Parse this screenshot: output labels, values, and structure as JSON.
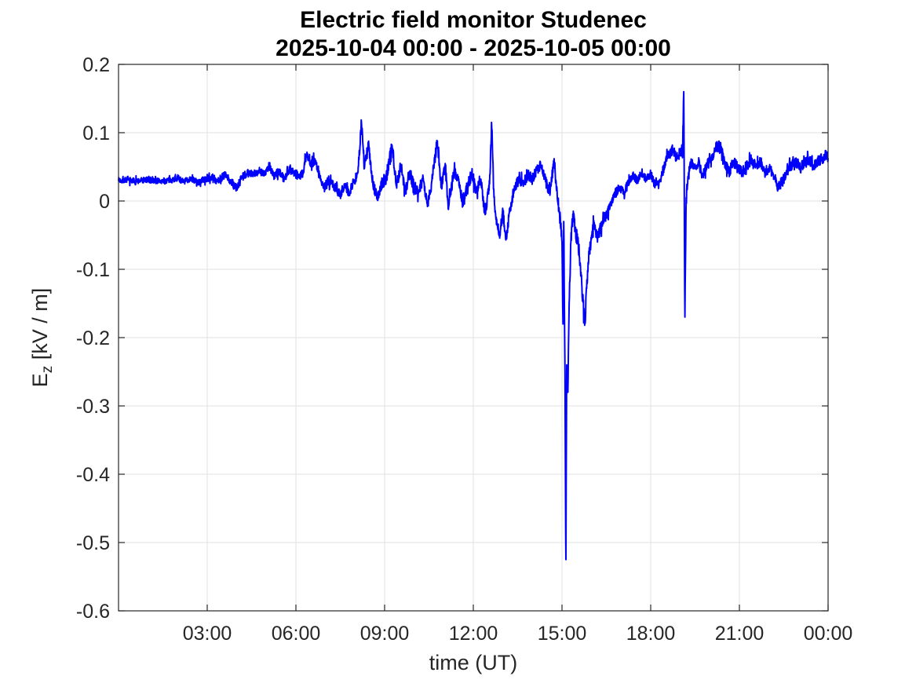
{
  "chart_data": {
    "type": "line",
    "title": "Electric field monitor Studenec",
    "subtitle": "2025-10-04 00:00 - 2025-10-05 00:00",
    "xlabel": "time (UT)",
    "ylabel": "E_z [kV / m]",
    "ylabel_parts": {
      "main": "E",
      "sub": "z",
      "rest": " [kV / m]"
    },
    "x_unit": "hours_UT",
    "xlim": [
      0,
      24
    ],
    "ylim": [
      -0.6,
      0.2
    ],
    "grid": true,
    "legend": null,
    "line_color": "#0000FF",
    "axis_color": "#262626",
    "grid_color": "#E2E2E2",
    "background": "#FFFFFF",
    "x_ticks": [
      {
        "h": 3,
        "label": "03:00"
      },
      {
        "h": 6,
        "label": "06:00"
      },
      {
        "h": 9,
        "label": "09:00"
      },
      {
        "h": 12,
        "label": "12:00"
      },
      {
        "h": 15,
        "label": "15:00"
      },
      {
        "h": 18,
        "label": "18:00"
      },
      {
        "h": 21,
        "label": "21:00"
      },
      {
        "h": 24,
        "label": "00:00"
      }
    ],
    "y_ticks": [
      {
        "v": 0.2,
        "label": "0.2"
      },
      {
        "v": 0.1,
        "label": "0.1"
      },
      {
        "v": 0,
        "label": "0"
      },
      {
        "v": -0.1,
        "label": "-0.1"
      },
      {
        "v": -0.2,
        "label": "-0.2"
      },
      {
        "v": -0.3,
        "label": "-0.3"
      },
      {
        "v": -0.4,
        "label": "-0.4"
      },
      {
        "v": -0.5,
        "label": "-0.5"
      },
      {
        "v": -0.6,
        "label": "-0.6"
      }
    ],
    "keypoints": [
      [
        0,
        0.03
      ],
      [
        0.3,
        0.031
      ],
      [
        0.6,
        0.029
      ],
      [
        0.9,
        0.031
      ],
      [
        1.2,
        0.03
      ],
      [
        1.5,
        0.029
      ],
      [
        1.8,
        0.031
      ],
      [
        2,
        0.034
      ],
      [
        2.2,
        0.028
      ],
      [
        2.45,
        0.033
      ],
      [
        2.7,
        0.027
      ],
      [
        2.9,
        0.031
      ],
      [
        3.1,
        0.035
      ],
      [
        3.35,
        0.03
      ],
      [
        3.6,
        0.038
      ],
      [
        3.8,
        0.028
      ],
      [
        4,
        0.019
      ],
      [
        4.15,
        0.032
      ],
      [
        4.35,
        0.042
      ],
      [
        4.55,
        0.038
      ],
      [
        4.75,
        0.045
      ],
      [
        4.95,
        0.04
      ],
      [
        5.1,
        0.053
      ],
      [
        5.25,
        0.036
      ],
      [
        5.45,
        0.044
      ],
      [
        5.6,
        0.032
      ],
      [
        5.8,
        0.048
      ],
      [
        5.95,
        0.042
      ],
      [
        6.1,
        0.035
      ],
      [
        6.25,
        0.042
      ],
      [
        6.35,
        0.068
      ],
      [
        6.5,
        0.054
      ],
      [
        6.65,
        0.06
      ],
      [
        6.8,
        0.04
      ],
      [
        6.95,
        0.018
      ],
      [
        7.1,
        0.03
      ],
      [
        7.3,
        0.022
      ],
      [
        7.5,
        0.008
      ],
      [
        7.65,
        0.025
      ],
      [
        7.8,
        0.012
      ],
      [
        7.95,
        0.028
      ],
      [
        8.1,
        0.042
      ],
      [
        8.22,
        0.115
      ],
      [
        8.32,
        0.048
      ],
      [
        8.45,
        0.082
      ],
      [
        8.6,
        0.028
      ],
      [
        8.75,
        0.002
      ],
      [
        8.9,
        0.025
      ],
      [
        9.05,
        0.032
      ],
      [
        9.25,
        0.082
      ],
      [
        9.4,
        0.024
      ],
      [
        9.55,
        0.052
      ],
      [
        9.7,
        0.015
      ],
      [
        9.85,
        0.042
      ],
      [
        10,
        0.022
      ],
      [
        10.15,
        0.012
      ],
      [
        10.3,
        0.035
      ],
      [
        10.45,
        -0.008
      ],
      [
        10.6,
        0.03
      ],
      [
        10.78,
        0.088
      ],
      [
        10.92,
        0.02
      ],
      [
        11.05,
        0.055
      ],
      [
        11.15,
        -0.012
      ],
      [
        11.35,
        0.045
      ],
      [
        11.5,
        0.03
      ],
      [
        11.65,
        -0.005
      ],
      [
        11.8,
        0.022
      ],
      [
        11.95,
        0.04
      ],
      [
        12.1,
        0.015
      ],
      [
        12.25,
        0.032
      ],
      [
        12.4,
        -0.02
      ],
      [
        12.55,
        0.025
      ],
      [
        12.62,
        0.115
      ],
      [
        12.7,
        0.005
      ],
      [
        12.8,
        -0.035
      ],
      [
        12.9,
        -0.048
      ],
      [
        13,
        -0.015
      ],
      [
        13.1,
        -0.057
      ],
      [
        13.25,
        -0.01
      ],
      [
        13.4,
        0.022
      ],
      [
        13.55,
        0.032
      ],
      [
        13.7,
        0.026
      ],
      [
        13.85,
        0.038
      ],
      [
        14,
        0.032
      ],
      [
        14.15,
        0.045
      ],
      [
        14.3,
        0.052
      ],
      [
        14.45,
        0.028
      ],
      [
        14.6,
        0.012
      ],
      [
        14.73,
        0.062
      ],
      [
        14.82,
        0.015
      ],
      [
        14.9,
        -0.01
      ],
      [
        15,
        -0.06
      ],
      [
        15.03,
        -0.18
      ],
      [
        15.06,
        -0.03
      ],
      [
        15.1,
        -0.25
      ],
      [
        15.13,
        -0.525
      ],
      [
        15.16,
        -0.24
      ],
      [
        15.2,
        -0.28
      ],
      [
        15.24,
        -0.15
      ],
      [
        15.3,
        -0.06
      ],
      [
        15.38,
        -0.015
      ],
      [
        15.45,
        -0.045
      ],
      [
        15.55,
        -0.06
      ],
      [
        15.65,
        -0.11
      ],
      [
        15.77,
        -0.182
      ],
      [
        15.88,
        -0.09
      ],
      [
        16,
        -0.05
      ],
      [
        16.1,
        -0.035
      ],
      [
        16.2,
        -0.06
      ],
      [
        16.35,
        -0.03
      ],
      [
        16.5,
        -0.015
      ],
      [
        16.65,
        -0.005
      ],
      [
        16.8,
        0.012
      ],
      [
        16.95,
        0.02
      ],
      [
        17.1,
        0.012
      ],
      [
        17.25,
        0.028
      ],
      [
        17.4,
        0.038
      ],
      [
        17.55,
        0.03
      ],
      [
        17.7,
        0.042
      ],
      [
        17.85,
        0.032
      ],
      [
        18,
        0.04
      ],
      [
        18.15,
        0.022
      ],
      [
        18.3,
        0.028
      ],
      [
        18.45,
        0.05
      ],
      [
        18.6,
        0.068
      ],
      [
        18.75,
        0.075
      ],
      [
        18.9,
        0.062
      ],
      [
        19,
        0.072
      ],
      [
        19.08,
        0.078
      ],
      [
        19.12,
        0.16
      ],
      [
        19.155,
        -0.17
      ],
      [
        19.2,
        0.005
      ],
      [
        19.28,
        0.042
      ],
      [
        19.4,
        0.058
      ],
      [
        19.5,
        0.048
      ],
      [
        19.62,
        0.055
      ],
      [
        19.75,
        0.038
      ],
      [
        19.9,
        0.052
      ],
      [
        20.05,
        0.062
      ],
      [
        20.2,
        0.078
      ],
      [
        20.35,
        0.082
      ],
      [
        20.5,
        0.055
      ],
      [
        20.65,
        0.042
      ],
      [
        20.8,
        0.058
      ],
      [
        20.95,
        0.048
      ],
      [
        21.1,
        0.042
      ],
      [
        21.25,
        0.052
      ],
      [
        21.4,
        0.06
      ],
      [
        21.55,
        0.05
      ],
      [
        21.7,
        0.058
      ],
      [
        21.85,
        0.042
      ],
      [
        22,
        0.048
      ],
      [
        22.15,
        0.038
      ],
      [
        22.3,
        0.022
      ],
      [
        22.45,
        0.028
      ],
      [
        22.6,
        0.042
      ],
      [
        22.75,
        0.052
      ],
      [
        22.9,
        0.058
      ],
      [
        23.05,
        0.048
      ],
      [
        23.2,
        0.055
      ],
      [
        23.35,
        0.06
      ],
      [
        23.5,
        0.052
      ],
      [
        23.65,
        0.058
      ],
      [
        23.8,
        0.062
      ],
      [
        23.95,
        0.068
      ],
      [
        24,
        0.062
      ]
    ],
    "noise": {
      "seed": 7,
      "segments": [
        {
          "from": 0,
          "to": 3,
          "amp": 0.0045
        },
        {
          "from": 3,
          "to": 6,
          "amp": 0.006
        },
        {
          "from": 6,
          "to": 8,
          "amp": 0.007
        },
        {
          "from": 8,
          "to": 12.5,
          "amp": 0.009
        },
        {
          "from": 12.5,
          "to": 14.9,
          "amp": 0.008
        },
        {
          "from": 14.9,
          "to": 16.6,
          "amp": 0.011
        },
        {
          "from": 16.6,
          "to": 18.4,
          "amp": 0.006
        },
        {
          "from": 18.4,
          "to": 24.01,
          "amp": 0.008
        }
      ]
    }
  }
}
